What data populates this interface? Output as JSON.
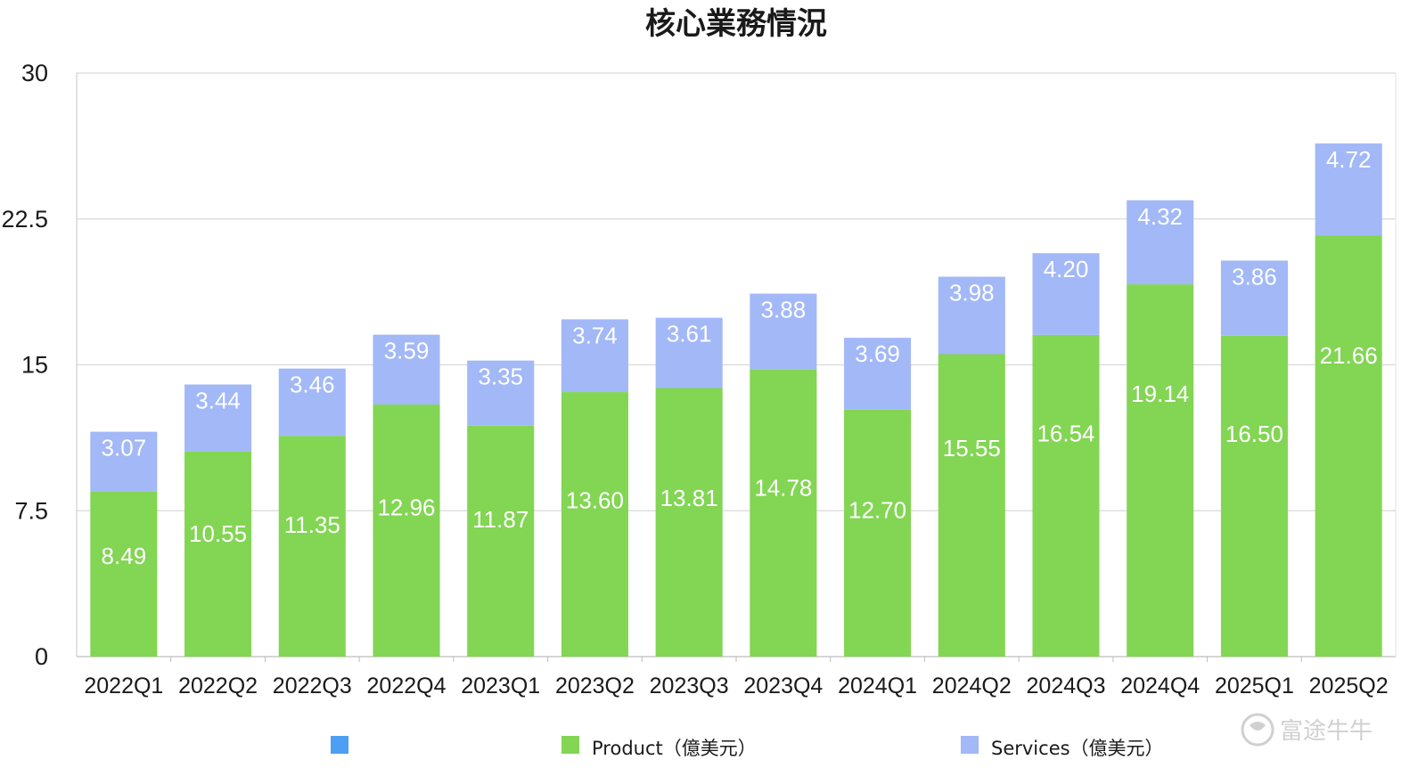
{
  "chart_data": {
    "type": "bar",
    "stacked": true,
    "title": "核心業務情況",
    "xlabel": "",
    "ylabel": "",
    "ylim": [
      0,
      30
    ],
    "yticks": [
      "0",
      "7.5",
      "15",
      "22.5",
      "30"
    ],
    "grid": true,
    "legend_position": "bottom",
    "categories": [
      "2022Q1",
      "2022Q2",
      "2022Q3",
      "2022Q4",
      "2023Q1",
      "2023Q2",
      "2023Q3",
      "2023Q4",
      "2024Q1",
      "2024Q2",
      "2024Q3",
      "2024Q4",
      "2025Q1",
      "2025Q2"
    ],
    "series": [
      {
        "name": "Product（億美元）",
        "color": "#83d554",
        "values": [
          8.49,
          10.55,
          11.35,
          12.96,
          11.87,
          13.6,
          13.81,
          14.78,
          12.7,
          15.55,
          16.54,
          19.14,
          16.5,
          21.66
        ],
        "labels": [
          "8.49",
          "10.55",
          "11.35",
          "12.96",
          "11.87",
          "13.60",
          "13.81",
          "14.78",
          "12.70",
          "15.55",
          "16.54",
          "19.14",
          "16.50",
          "21.66"
        ]
      },
      {
        "name": "Services（億美元）",
        "color": "#a2b8f7",
        "values": [
          3.07,
          3.44,
          3.46,
          3.59,
          3.35,
          3.74,
          3.61,
          3.88,
          3.69,
          3.98,
          4.2,
          4.32,
          3.86,
          4.72
        ],
        "labels": [
          "3.07",
          "3.44",
          "3.46",
          "3.59",
          "3.35",
          "3.74",
          "3.61",
          "3.88",
          "3.69",
          "3.98",
          "4.20",
          "4.32",
          "3.86",
          "4.72"
        ]
      }
    ],
    "legend": [
      {
        "label": "",
        "color": "#4c9ff2"
      },
      {
        "label": "Product（億美元）",
        "color": "#83d554"
      },
      {
        "label": "Services（億美元）",
        "color": "#a2b8f7"
      }
    ]
  },
  "watermark": {
    "text": "富途牛牛",
    "icon": "futu-bull-icon"
  }
}
